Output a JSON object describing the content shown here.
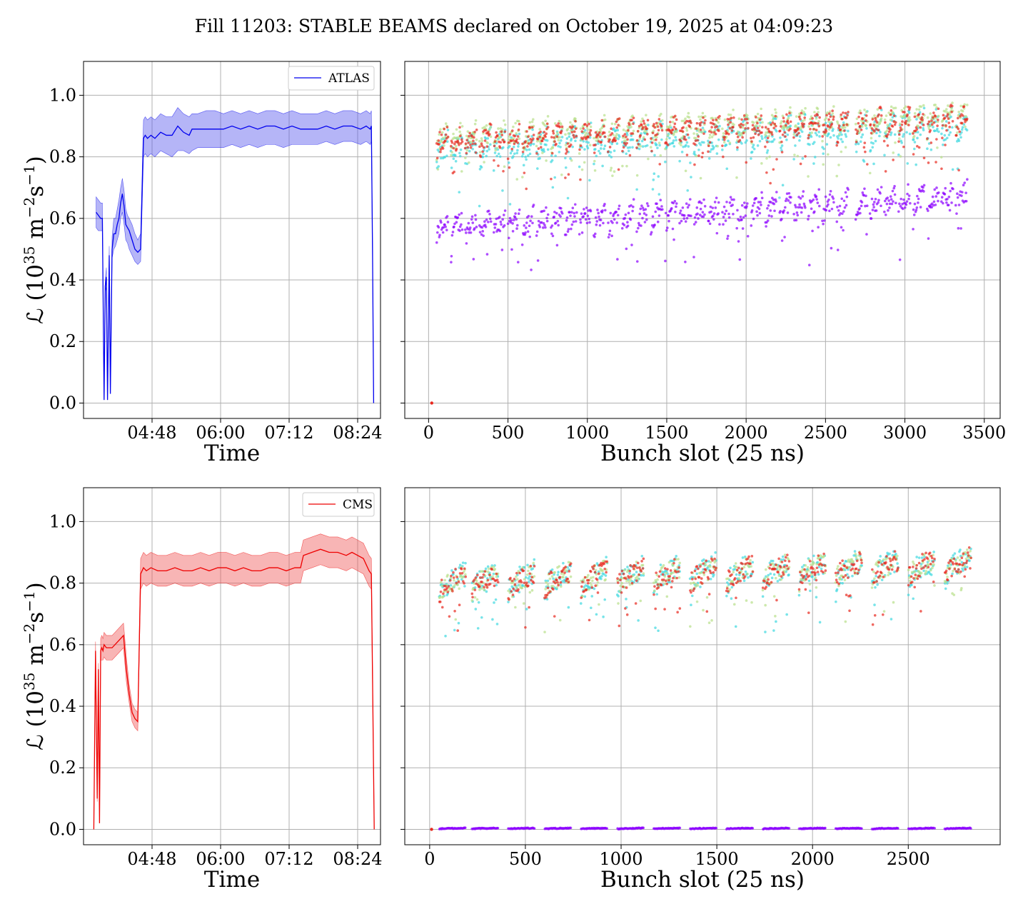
{
  "figure": {
    "title": "Fill 11203: STABLE BEAMS declared on October 19, 2025 at 04:09:23"
  },
  "chart_data": [
    {
      "type": "line",
      "id": "atlas-time",
      "xlabel": "Time",
      "ylabel_main": "ℒ (10",
      "ylabel_exp": "35",
      "ylabel_unit1": " m",
      "ylabel_unit1_exp": "−2",
      "ylabel_unit2": "s",
      "ylabel_unit2_exp": "−1",
      "ylabel_close": ")",
      "xlim_hours": [
        3.6,
        8.8
      ],
      "ylim": [
        -0.05,
        1.11
      ],
      "xticks": [
        {
          "label": "04:48",
          "value": 4.8
        },
        {
          "label": "06:00",
          "value": 6.0
        },
        {
          "label": "07:12",
          "value": 7.2
        },
        {
          "label": "08:24",
          "value": 8.4
        }
      ],
      "yticks": [
        "0.0",
        "0.2",
        "0.4",
        "0.6",
        "0.8",
        "1.0"
      ],
      "legend": {
        "label": "ATLAS",
        "position": "top-right"
      },
      "color": "#0000ee",
      "band_color": "#5a5aee",
      "grid": true,
      "series": {
        "x": [
          3.82,
          3.86,
          3.9,
          3.93,
          3.96,
          3.98,
          4.0,
          4.02,
          4.05,
          4.07,
          4.1,
          4.13,
          4.16,
          4.19,
          4.22,
          4.25,
          4.28,
          4.31,
          4.34,
          4.37,
          4.4,
          4.45,
          4.5,
          4.55,
          4.6,
          4.65,
          4.68,
          4.72,
          4.78,
          4.85,
          4.95,
          5.05,
          5.15,
          5.25,
          5.35,
          5.45,
          5.5,
          5.6,
          5.75,
          5.9,
          6.05,
          6.2,
          6.35,
          6.5,
          6.65,
          6.8,
          6.95,
          7.1,
          7.25,
          7.4,
          7.55,
          7.7,
          7.85,
          8.0,
          8.15,
          8.3,
          8.45,
          8.55,
          8.62,
          8.64,
          8.66,
          8.68
        ],
        "y": [
          0.62,
          0.61,
          0.6,
          0.6,
          0.01,
          0.38,
          0.41,
          0.01,
          0.48,
          0.03,
          0.5,
          0.55,
          0.55,
          0.58,
          0.6,
          0.65,
          0.68,
          0.64,
          0.58,
          0.57,
          0.56,
          0.53,
          0.5,
          0.49,
          0.5,
          0.86,
          0.87,
          0.86,
          0.87,
          0.86,
          0.88,
          0.87,
          0.87,
          0.9,
          0.88,
          0.87,
          0.89,
          0.89,
          0.89,
          0.89,
          0.89,
          0.9,
          0.89,
          0.9,
          0.89,
          0.9,
          0.9,
          0.89,
          0.9,
          0.89,
          0.89,
          0.89,
          0.9,
          0.89,
          0.9,
          0.9,
          0.89,
          0.9,
          0.89,
          0.9,
          0.5,
          0.0
        ],
        "band_low": [
          0.57,
          0.56,
          0.56,
          0.56,
          0.01,
          0.36,
          0.38,
          0.01,
          0.45,
          0.03,
          0.47,
          0.5,
          0.51,
          0.53,
          0.55,
          0.6,
          0.62,
          0.58,
          0.53,
          0.52,
          0.5,
          0.48,
          0.46,
          0.45,
          0.46,
          0.8,
          0.81,
          0.8,
          0.81,
          0.8,
          0.82,
          0.81,
          0.8,
          0.82,
          0.82,
          0.81,
          0.82,
          0.83,
          0.83,
          0.83,
          0.83,
          0.84,
          0.83,
          0.84,
          0.83,
          0.84,
          0.84,
          0.83,
          0.84,
          0.84,
          0.84,
          0.84,
          0.85,
          0.84,
          0.85,
          0.85,
          0.84,
          0.85,
          0.84,
          0.85,
          0.47,
          0.0
        ],
        "band_high": [
          0.67,
          0.66,
          0.65,
          0.65,
          0.01,
          0.4,
          0.44,
          0.01,
          0.51,
          0.03,
          0.54,
          0.6,
          0.6,
          0.63,
          0.66,
          0.7,
          0.73,
          0.69,
          0.63,
          0.61,
          0.6,
          0.58,
          0.55,
          0.53,
          0.55,
          0.92,
          0.93,
          0.92,
          0.93,
          0.92,
          0.94,
          0.93,
          0.93,
          0.96,
          0.94,
          0.93,
          0.94,
          0.94,
          0.95,
          0.95,
          0.94,
          0.95,
          0.94,
          0.95,
          0.94,
          0.95,
          0.95,
          0.94,
          0.95,
          0.94,
          0.94,
          0.94,
          0.95,
          0.94,
          0.95,
          0.95,
          0.94,
          0.95,
          0.94,
          0.95,
          0.53,
          0.0
        ]
      }
    },
    {
      "type": "scatter",
      "id": "atlas-bunch",
      "xlabel": "Bunch slot (25 ns)",
      "xlim": [
        -150,
        3600
      ],
      "ylim": [
        -0.05,
        1.11
      ],
      "xticks": [
        "0",
        "500",
        "1000",
        "1500",
        "2000",
        "2500",
        "3000",
        "3500"
      ],
      "grid": true,
      "groups_start": [
        50,
        140,
        230,
        320,
        410,
        500,
        590,
        680,
        770,
        860,
        950,
        1040,
        1130,
        1220,
        1310,
        1400,
        1490,
        1580,
        1670,
        1760,
        1850,
        1940,
        2030,
        2120,
        2210,
        2300,
        2390,
        2480,
        2570,
        2690,
        2780,
        2870,
        2960,
        3050,
        3140,
        3230,
        3320
      ],
      "group_width": 75,
      "series": [
        {
          "color": "#8b00ff",
          "base_start": 0.57,
          "base_end": 0.67,
          "spread": 0.05
        },
        {
          "color": "#3fd9e0",
          "base_start": 0.82,
          "base_end": 0.9,
          "spread": 0.06
        },
        {
          "color": "#b8e08a",
          "base_start": 0.86,
          "base_end": 0.93,
          "spread": 0.05
        },
        {
          "color": "#e8281e",
          "base_start": 0.85,
          "base_end": 0.92,
          "spread": 0.05
        }
      ],
      "outlier": {
        "x": 20,
        "y": 0.0,
        "color": "#e8281e"
      }
    },
    {
      "type": "line",
      "id": "cms-time",
      "xlabel": "Time",
      "ylabel_main": "ℒ (10",
      "ylabel_exp": "35",
      "ylabel_unit1": " m",
      "ylabel_unit1_exp": "−2",
      "ylabel_unit2": "s",
      "ylabel_unit2_exp": "−1",
      "ylabel_close": ")",
      "xlim_hours": [
        3.6,
        8.8
      ],
      "ylim": [
        -0.05,
        1.11
      ],
      "xticks": [
        {
          "label": "04:48",
          "value": 4.8
        },
        {
          "label": "06:00",
          "value": 6.0
        },
        {
          "label": "07:12",
          "value": 7.2
        },
        {
          "label": "08:24",
          "value": 8.4
        }
      ],
      "yticks": [
        "0.0",
        "0.2",
        "0.4",
        "0.6",
        "0.8",
        "1.0"
      ],
      "legend": {
        "label": "CMS",
        "position": "top-right"
      },
      "color": "#ee0000",
      "band_color": "#f05a5a",
      "grid": true,
      "series": {
        "x": [
          3.78,
          3.81,
          3.84,
          3.86,
          3.88,
          3.9,
          3.92,
          3.94,
          3.96,
          4.0,
          4.1,
          4.2,
          4.3,
          4.35,
          4.4,
          4.45,
          4.5,
          4.55,
          4.6,
          4.65,
          4.7,
          4.78,
          4.9,
          5.05,
          5.2,
          5.35,
          5.5,
          5.65,
          5.8,
          5.95,
          6.1,
          6.25,
          6.4,
          6.55,
          6.7,
          6.85,
          7.0,
          7.15,
          7.3,
          7.4,
          7.45,
          7.6,
          7.75,
          7.9,
          8.05,
          8.2,
          8.3,
          8.4,
          8.5,
          8.6,
          8.64,
          8.66,
          8.69
        ],
        "y": [
          0.0,
          0.58,
          0.1,
          0.52,
          0.02,
          0.58,
          0.59,
          0.58,
          0.6,
          0.59,
          0.59,
          0.61,
          0.63,
          0.52,
          0.44,
          0.38,
          0.36,
          0.35,
          0.83,
          0.85,
          0.84,
          0.85,
          0.84,
          0.84,
          0.85,
          0.84,
          0.84,
          0.85,
          0.84,
          0.85,
          0.85,
          0.84,
          0.85,
          0.84,
          0.84,
          0.85,
          0.85,
          0.84,
          0.85,
          0.85,
          0.89,
          0.9,
          0.91,
          0.9,
          0.9,
          0.89,
          0.9,
          0.89,
          0.88,
          0.84,
          0.83,
          0.5,
          0.0
        ],
        "band_low": [
          0.0,
          0.55,
          0.09,
          0.5,
          0.02,
          0.55,
          0.55,
          0.55,
          0.56,
          0.55,
          0.55,
          0.57,
          0.59,
          0.48,
          0.41,
          0.35,
          0.33,
          0.32,
          0.78,
          0.8,
          0.79,
          0.8,
          0.79,
          0.79,
          0.8,
          0.79,
          0.79,
          0.8,
          0.79,
          0.8,
          0.8,
          0.79,
          0.8,
          0.79,
          0.79,
          0.8,
          0.8,
          0.79,
          0.8,
          0.8,
          0.84,
          0.85,
          0.86,
          0.85,
          0.85,
          0.84,
          0.85,
          0.84,
          0.83,
          0.79,
          0.78,
          0.47,
          0.0
        ],
        "band_high": [
          0.0,
          0.61,
          0.11,
          0.54,
          0.02,
          0.62,
          0.63,
          0.62,
          0.64,
          0.63,
          0.63,
          0.65,
          0.67,
          0.56,
          0.47,
          0.41,
          0.39,
          0.38,
          0.88,
          0.9,
          0.89,
          0.9,
          0.89,
          0.89,
          0.9,
          0.89,
          0.89,
          0.9,
          0.89,
          0.9,
          0.9,
          0.89,
          0.9,
          0.89,
          0.89,
          0.9,
          0.9,
          0.89,
          0.9,
          0.9,
          0.94,
          0.95,
          0.96,
          0.95,
          0.95,
          0.94,
          0.95,
          0.94,
          0.93,
          0.89,
          0.88,
          0.53,
          0.0
        ]
      }
    },
    {
      "type": "scatter",
      "id": "cms-bunch",
      "xlabel": "Bunch slot (25 ns)",
      "xlim": [
        -130,
        2980
      ],
      "ylim": [
        -0.05,
        1.11
      ],
      "xticks": [
        "0",
        "500",
        "1000",
        "1500",
        "2000",
        "2500"
      ],
      "grid": true,
      "groups_start": [
        50,
        220,
        410,
        600,
        790,
        980,
        1170,
        1360,
        1550,
        1740,
        1930,
        2120,
        2310,
        2500,
        2690
      ],
      "group_width": 140,
      "series": [
        {
          "color": "#8b00ff",
          "base_start": 0.003,
          "base_end": 0.003,
          "spread": 0.002
        },
        {
          "color": "#3fd9e0",
          "base_start": 0.8,
          "base_end": 0.86,
          "spread": 0.06
        },
        {
          "color": "#b8e08a",
          "base_start": 0.8,
          "base_end": 0.86,
          "spread": 0.05
        },
        {
          "color": "#e8281e",
          "base_start": 0.8,
          "base_end": 0.86,
          "spread": 0.05
        }
      ],
      "outlier": {
        "x": 10,
        "y": 0.0,
        "color": "#e8281e"
      }
    }
  ]
}
